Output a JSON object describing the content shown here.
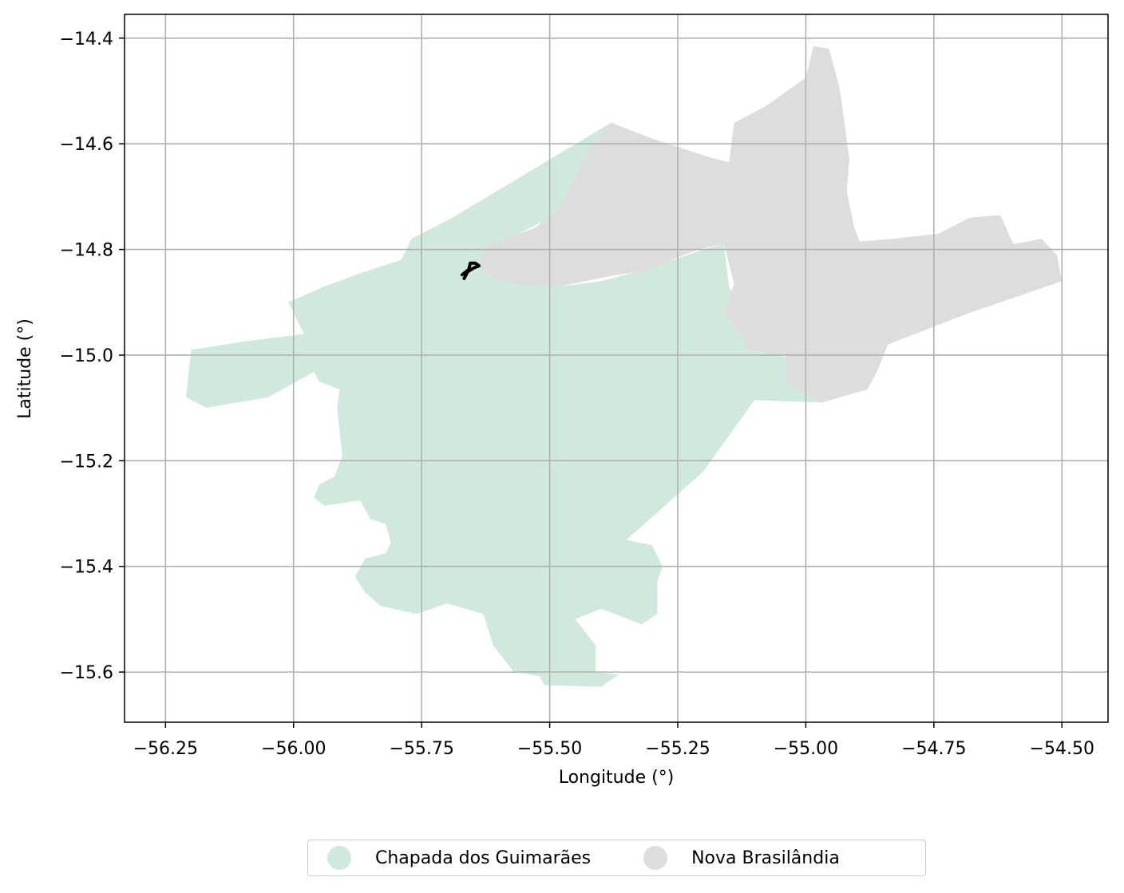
{
  "map": {
    "xlabel": "Longitude (°)",
    "ylabel": "Latitude (°)",
    "xlim": [
      -56.33,
      -54.41
    ],
    "ylim": [
      -15.695,
      -14.355
    ],
    "x_ticks": [
      -56.25,
      -56.0,
      -55.75,
      -55.5,
      -55.25,
      -55.0,
      -54.75,
      -54.5
    ],
    "x_tick_labels": [
      "−56.25",
      "−56.00",
      "−55.75",
      "−55.50",
      "−55.25",
      "−55.00",
      "−54.75",
      "−54.50"
    ],
    "y_ticks": [
      -14.4,
      -14.6,
      -14.8,
      -15.0,
      -15.2,
      -15.4,
      -15.6
    ],
    "y_tick_labels": [
      "−14.4",
      "−14.6",
      "−14.8",
      "−15.0",
      "−15.2",
      "−15.4",
      "−15.6"
    ],
    "grid": true,
    "legend_position": "bottom-center, outside plot",
    "regions": [
      {
        "name": "Chapada dos Guimarães",
        "color": "#cfeadd",
        "outline": [
          [
            -56.24,
            -14.975
          ],
          [
            -55.96,
            -15.032
          ],
          [
            -55.95,
            -15.05
          ],
          [
            -55.91,
            -15.065
          ],
          [
            -55.915,
            -15.1
          ],
          [
            -55.905,
            -15.19
          ],
          [
            -55.92,
            -15.23
          ],
          [
            -55.95,
            -15.245
          ],
          [
            -55.96,
            -15.27
          ],
          [
            -55.94,
            -15.285
          ],
          [
            -55.87,
            -15.275
          ],
          [
            -55.85,
            -15.31
          ],
          [
            -55.82,
            -15.32
          ],
          [
            -55.81,
            -15.355
          ],
          [
            -55.82,
            -15.375
          ],
          [
            -55.86,
            -15.385
          ],
          [
            -55.88,
            -15.42
          ],
          [
            -55.86,
            -15.45
          ],
          [
            -55.83,
            -15.475
          ],
          [
            -55.76,
            -15.49
          ],
          [
            -55.7,
            -15.47
          ],
          [
            -55.63,
            -15.49
          ],
          [
            -55.61,
            -15.55
          ],
          [
            -55.57,
            -15.6
          ],
          [
            -55.52,
            -15.608
          ],
          [
            -55.51,
            -15.625
          ],
          [
            -55.4,
            -15.628
          ],
          [
            -55.365,
            -15.605
          ],
          [
            -55.41,
            -15.6
          ],
          [
            -55.41,
            -15.55
          ],
          [
            -55.45,
            -15.5
          ],
          [
            -55.4,
            -15.48
          ],
          [
            -55.32,
            -15.51
          ],
          [
            -55.29,
            -15.49
          ],
          [
            -55.29,
            -15.43
          ],
          [
            -55.28,
            -15.4
          ],
          [
            -55.3,
            -15.36
          ],
          [
            -55.35,
            -15.35
          ],
          [
            -55.2,
            -15.22
          ],
          [
            -55.1,
            -15.085
          ],
          [
            -54.97,
            -15.09
          ],
          [
            -54.88,
            -15.065
          ],
          [
            -54.91,
            -15.05
          ],
          [
            -55.05,
            -15.0
          ],
          [
            -55.11,
            -14.95
          ],
          [
            -55.15,
            -14.87
          ],
          [
            -55.16,
            -14.79
          ],
          [
            -55.2,
            -14.8
          ],
          [
            -55.26,
            -14.82
          ],
          [
            -55.32,
            -14.84
          ],
          [
            -55.4,
            -14.86
          ],
          [
            -55.48,
            -14.87
          ],
          [
            -55.55,
            -14.86
          ],
          [
            -55.62,
            -14.85
          ],
          [
            -55.64,
            -14.83
          ],
          [
            -55.62,
            -14.79
          ],
          [
            -55.56,
            -14.77
          ],
          [
            -55.48,
            -14.73
          ],
          [
            -55.45,
            -14.68
          ],
          [
            -55.43,
            -14.65
          ],
          [
            -55.42,
            -14.61
          ],
          [
            -55.38,
            -14.56
          ],
          [
            -55.69,
            -14.74
          ],
          [
            -55.77,
            -14.78
          ],
          [
            -55.79,
            -14.82
          ],
          [
            -55.87,
            -14.845
          ],
          [
            -55.94,
            -14.87
          ],
          [
            -56.01,
            -14.9
          ],
          [
            -55.98,
            -14.96
          ],
          [
            -56.1,
            -14.975
          ],
          [
            -56.2,
            -14.99
          ],
          [
            -56.21,
            -15.08
          ],
          [
            -56.17,
            -15.1
          ],
          [
            -56.05,
            -15.08
          ],
          [
            -55.96,
            -15.032
          ],
          [
            -56.24,
            -14.975
          ]
        ]
      },
      {
        "name": "Nova Brasilândia",
        "color": "#dddddd",
        "outline": [
          [
            -55.62,
            -14.79
          ],
          [
            -55.53,
            -14.76
          ],
          [
            -55.48,
            -14.72
          ],
          [
            -55.45,
            -14.665
          ],
          [
            -55.43,
            -14.62
          ],
          [
            -55.41,
            -14.595
          ],
          [
            -55.38,
            -14.56
          ],
          [
            -55.3,
            -14.59
          ],
          [
            -55.19,
            -14.625
          ],
          [
            -55.15,
            -14.635
          ],
          [
            -55.14,
            -14.56
          ],
          [
            -55.08,
            -14.53
          ],
          [
            -55.0,
            -14.475
          ],
          [
            -54.985,
            -14.415
          ],
          [
            -54.955,
            -14.42
          ],
          [
            -54.935,
            -14.49
          ],
          [
            -54.93,
            -14.52
          ],
          [
            -54.915,
            -14.63
          ],
          [
            -54.92,
            -14.69
          ],
          [
            -54.905,
            -14.76
          ],
          [
            -54.895,
            -14.785
          ],
          [
            -54.83,
            -14.78
          ],
          [
            -54.74,
            -14.77
          ],
          [
            -54.68,
            -14.74
          ],
          [
            -54.62,
            -14.735
          ],
          [
            -54.595,
            -14.79
          ],
          [
            -54.54,
            -14.78
          ],
          [
            -54.51,
            -14.81
          ],
          [
            -54.5,
            -14.86
          ],
          [
            -54.68,
            -14.92
          ],
          [
            -54.84,
            -14.98
          ],
          [
            -54.86,
            -15.03
          ],
          [
            -54.88,
            -15.065
          ],
          [
            -54.97,
            -15.09
          ],
          [
            -55.04,
            -15.05
          ],
          [
            -55.04,
            -15.0
          ],
          [
            -55.11,
            -14.99
          ],
          [
            -55.14,
            -14.945
          ],
          [
            -55.16,
            -14.92
          ],
          [
            -55.14,
            -14.865
          ],
          [
            -55.16,
            -14.79
          ],
          [
            -55.21,
            -14.8
          ],
          [
            -55.25,
            -14.815
          ],
          [
            -55.31,
            -14.84
          ],
          [
            -55.38,
            -14.85
          ],
          [
            -55.48,
            -14.87
          ],
          [
            -55.57,
            -14.865
          ],
          [
            -55.62,
            -14.85
          ],
          [
            -55.64,
            -14.83
          ],
          [
            -55.62,
            -14.79
          ]
        ]
      }
    ],
    "track": {
      "color": "#000000",
      "points": [
        [
          -55.667,
          -14.855
        ],
        [
          -55.66,
          -14.842
        ],
        [
          -55.648,
          -14.835
        ],
        [
          -55.638,
          -14.831
        ],
        [
          -55.645,
          -14.826
        ],
        [
          -55.655,
          -14.826
        ],
        [
          -55.658,
          -14.838
        ],
        [
          -55.671,
          -14.848
        ]
      ]
    }
  },
  "legend": {
    "items": [
      {
        "label": "Chapada dos Guimarães",
        "color": "#cfeadd"
      },
      {
        "label": "Nova Brasilândia",
        "color": "#dddddd"
      }
    ]
  }
}
